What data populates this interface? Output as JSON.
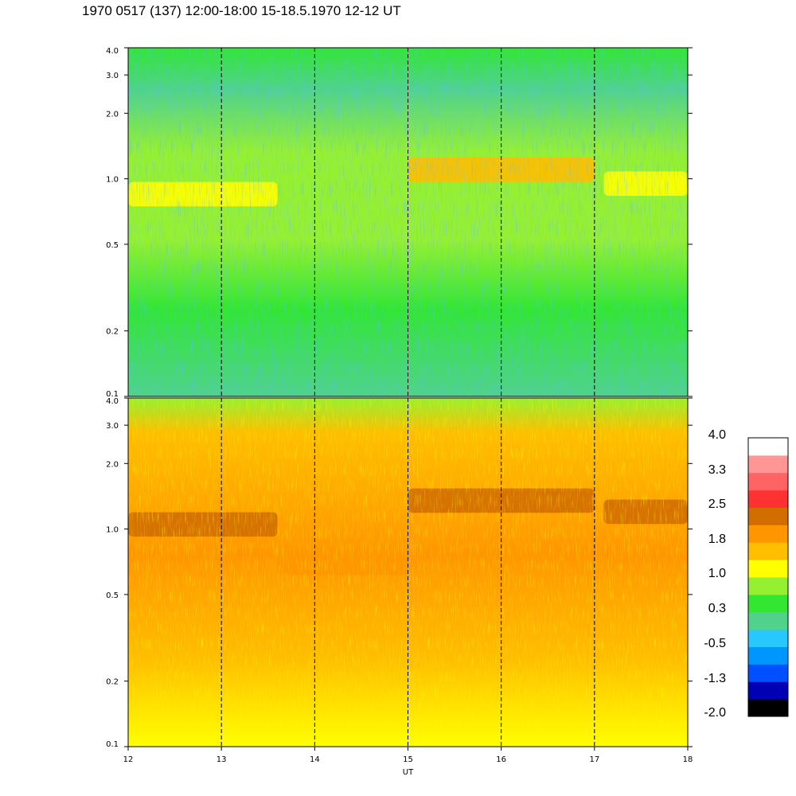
{
  "title": "1970 0517 (137) 12:00-18:00 15-18.5.1970  12-12 UT",
  "chart_data": {
    "type": "heatmap",
    "title": "1970 0517 (137) 12:00-18:00 15-18.5.1970  12-12 UT",
    "xlabel": "UT",
    "ylabel": "",
    "xlim": [
      12,
      18
    ],
    "x_ticks": [
      "12",
      "13",
      "14",
      "15",
      "16",
      "17",
      "18"
    ],
    "ylim": [
      0.1,
      4.0
    ],
    "y_scale": "log",
    "y_ticks": [
      {
        "value": 0.1,
        "label": "0.1"
      },
      {
        "value": 0.2,
        "label": "0.2"
      },
      {
        "value": 0.5,
        "label": "0.5"
      },
      {
        "value": 1.0,
        "label": "1.0"
      },
      {
        "value": 2.0,
        "label": "2.0"
      },
      {
        "value": 3.0,
        "label": "3.0"
      },
      {
        "value": 4.0,
        "label": "4.0"
      }
    ],
    "vertical_dashed_lines_at": [
      13,
      14,
      15,
      16,
      17
    ],
    "panels": [
      {
        "name": "",
        "bands": [
          {
            "x_from": 12,
            "x_to": 13.6,
            "y_center": 0.85,
            "level": 1.0
          },
          {
            "x_from": 15.0,
            "x_to": 17.0,
            "y_center": 1.1,
            "level": 1.4
          },
          {
            "x_from": 17.1,
            "x_to": 18.0,
            "y_center": 0.95,
            "level": 1.0
          }
        ]
      },
      {
        "name": "",
        "bands": [
          {
            "x_from": 12,
            "x_to": 13.6,
            "y_center": 1.05,
            "level": 2.3
          },
          {
            "x_from": 13.6,
            "x_to": 15.0,
            "y_center": 0.7,
            "level": 2.0
          },
          {
            "x_from": 15.0,
            "x_to": 17.0,
            "y_center": 1.35,
            "level": 2.3
          },
          {
            "x_from": 17.1,
            "x_to": 18.0,
            "y_center": 1.2,
            "level": 2.3
          }
        ]
      }
    ],
    "colorbar": {
      "labels": [
        "4.0",
        "3.3",
        "2.5",
        "1.8",
        "1.0",
        "0.3",
        "-0.5",
        "-1.3",
        "-2.0"
      ],
      "range": [
        -2.0,
        4.0
      ],
      "colors": [
        "#000000",
        "#0000b4",
        "#0050ff",
        "#0096ff",
        "#28c8ff",
        "#50d28c",
        "#32e632",
        "#96f032",
        "#ffff00",
        "#ffbe00",
        "#ff9600",
        "#d26e00",
        "#ff3232",
        "#ff6464",
        "#ff9696",
        "#ffffff"
      ]
    }
  }
}
